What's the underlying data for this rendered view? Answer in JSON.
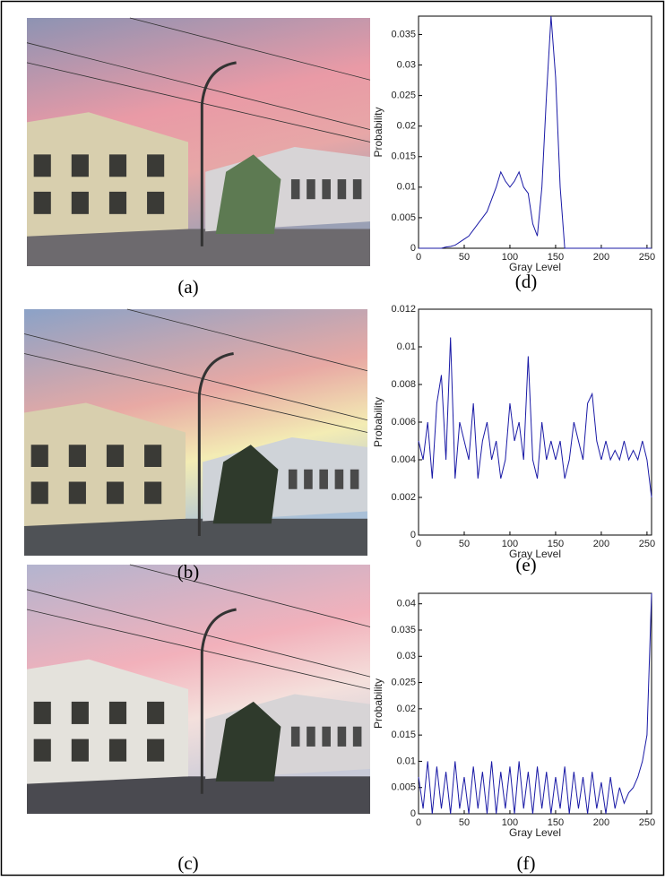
{
  "panels": [
    "(a)",
    "(b)",
    "(c)"
  ],
  "chart_data": [
    {
      "type": "line",
      "caption": "(d)",
      "x_label": "Gray Level",
      "y_label": "Probability",
      "x": [
        0,
        5,
        10,
        15,
        20,
        25,
        30,
        35,
        40,
        45,
        50,
        55,
        60,
        65,
        70,
        75,
        80,
        85,
        90,
        95,
        100,
        105,
        110,
        115,
        120,
        125,
        130,
        135,
        140,
        145,
        150,
        155,
        160,
        165,
        170,
        175,
        180,
        185,
        190,
        195,
        200,
        205,
        210,
        215,
        220,
        225,
        230,
        235,
        240,
        245,
        250,
        255
      ],
      "series": [
        {
          "color": "#1a1aa6",
          "values": [
            0,
            0,
            0,
            0,
            0,
            0,
            0.0002,
            0.0003,
            0.0005,
            0.001,
            0.0015,
            0.002,
            0.003,
            0.004,
            0.005,
            0.006,
            0.008,
            0.01,
            0.0125,
            0.011,
            0.01,
            0.011,
            0.0125,
            0.01,
            0.009,
            0.004,
            0.002,
            0.01,
            0.025,
            0.038,
            0.028,
            0.01,
            0,
            0,
            0,
            0,
            0,
            0,
            0,
            0,
            0,
            0,
            0,
            0,
            0,
            0,
            0,
            0,
            0,
            0,
            0,
            0
          ]
        }
      ],
      "xlim": [
        0,
        255
      ],
      "xticks": [
        0,
        50,
        100,
        150,
        200,
        250
      ],
      "ylim": [
        0,
        0.038
      ],
      "yticks": [
        0,
        0.005,
        0.01,
        0.015,
        0.02,
        0.025,
        0.03,
        0.035
      ]
    },
    {
      "type": "line",
      "caption": "(e)",
      "x_label": "Gray Level",
      "y_label": "Probability",
      "x": [
        0,
        5,
        10,
        15,
        20,
        25,
        30,
        35,
        40,
        45,
        50,
        55,
        60,
        65,
        70,
        75,
        80,
        85,
        90,
        95,
        100,
        105,
        110,
        115,
        120,
        125,
        130,
        135,
        140,
        145,
        150,
        155,
        160,
        165,
        170,
        175,
        180,
        185,
        190,
        195,
        200,
        205,
        210,
        215,
        220,
        225,
        230,
        235,
        240,
        245,
        250,
        255
      ],
      "series": [
        {
          "color": "#1a1aa6",
          "values": [
            0.005,
            0.004,
            0.006,
            0.003,
            0.007,
            0.0085,
            0.004,
            0.0105,
            0.003,
            0.006,
            0.005,
            0.004,
            0.007,
            0.003,
            0.005,
            0.006,
            0.004,
            0.005,
            0.003,
            0.004,
            0.007,
            0.005,
            0.006,
            0.004,
            0.0095,
            0.004,
            0.003,
            0.006,
            0.004,
            0.005,
            0.004,
            0.005,
            0.003,
            0.004,
            0.006,
            0.005,
            0.004,
            0.007,
            0.0075,
            0.005,
            0.004,
            0.005,
            0.004,
            0.0045,
            0.004,
            0.005,
            0.004,
            0.0045,
            0.004,
            0.005,
            0.004,
            0.002
          ]
        }
      ],
      "xlim": [
        0,
        255
      ],
      "xticks": [
        0,
        50,
        100,
        150,
        200,
        250
      ],
      "ylim": [
        0,
        0.012
      ],
      "yticks": [
        0,
        0.002,
        0.004,
        0.006,
        0.008,
        0.01,
        0.012
      ]
    },
    {
      "type": "line",
      "caption": "(f)",
      "x_label": "Gray Level",
      "y_label": "Probability",
      "x": [
        0,
        5,
        10,
        15,
        20,
        25,
        30,
        35,
        40,
        45,
        50,
        55,
        60,
        65,
        70,
        75,
        80,
        85,
        90,
        95,
        100,
        105,
        110,
        115,
        120,
        125,
        130,
        135,
        140,
        145,
        150,
        155,
        160,
        165,
        170,
        175,
        180,
        185,
        190,
        195,
        200,
        205,
        210,
        215,
        220,
        225,
        230,
        235,
        240,
        245,
        250,
        255
      ],
      "series": [
        {
          "color": "#1a1aa6",
          "values": [
            0.007,
            0.001,
            0.01,
            0,
            0.009,
            0.001,
            0.008,
            0,
            0.01,
            0.001,
            0.007,
            0,
            0.009,
            0.001,
            0.008,
            0,
            0.01,
            0,
            0.008,
            0.001,
            0.009,
            0,
            0.01,
            0.001,
            0.008,
            0,
            0.009,
            0.001,
            0.008,
            0,
            0.007,
            0.001,
            0.009,
            0,
            0.008,
            0.001,
            0.007,
            0,
            0.008,
            0.001,
            0.006,
            0,
            0.007,
            0.001,
            0.005,
            0.002,
            0.004,
            0.005,
            0.007,
            0.01,
            0.015,
            0.042
          ]
        }
      ],
      "xlim": [
        0,
        255
      ],
      "xticks": [
        0,
        50,
        100,
        150,
        200,
        250
      ],
      "ylim": [
        0,
        0.042
      ],
      "yticks": [
        0,
        0.005,
        0.01,
        0.015,
        0.02,
        0.025,
        0.03,
        0.035,
        0.04
      ]
    }
  ]
}
